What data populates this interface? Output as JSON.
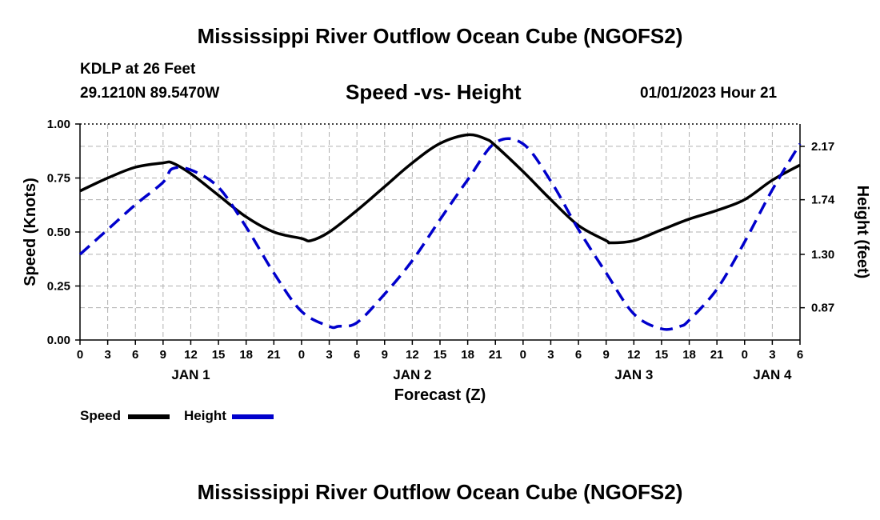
{
  "page": {
    "title": "Mississippi River Outflow Ocean Cube (NGOFS2)",
    "footer_title": "Mississippi River Outflow Ocean Cube (NGOFS2)",
    "station": "KDLP at 26 Feet",
    "coordinates": "29.1210N  89.5470W",
    "subtitle": "Speed -vs- Height",
    "datetime": "01/01/2023 Hour 21"
  },
  "chart_data": {
    "type": "line",
    "title": "Speed -vs- Height",
    "xlabel": "Forecast (Z)",
    "ylabel": "Speed (Knots)",
    "y2label": "Height (feet)",
    "x_unit": "hours from 00Z Jan 1",
    "xlim": [
      0,
      78
    ],
    "ylim": [
      0,
      1.0
    ],
    "y2lim": [
      0.61,
      2.35
    ],
    "x_ticks": [
      0,
      3,
      6,
      9,
      12,
      15,
      18,
      21,
      24,
      27,
      30,
      33,
      36,
      39,
      42,
      45,
      48,
      51,
      54,
      57,
      60,
      63,
      66,
      69,
      72,
      75,
      78
    ],
    "x_tick_labels": [
      "0",
      "3",
      "6",
      "9",
      "12",
      "15",
      "18",
      "21",
      "0",
      "3",
      "6",
      "9",
      "12",
      "15",
      "18",
      "21",
      "0",
      "3",
      "6",
      "9",
      "12",
      "15",
      "18",
      "21",
      "0",
      "3",
      "6"
    ],
    "day_labels": [
      {
        "x": 12,
        "label": "JAN 1"
      },
      {
        "x": 36,
        "label": "JAN 2"
      },
      {
        "x": 60,
        "label": "JAN 3"
      },
      {
        "x": 75,
        "label": "JAN 4"
      }
    ],
    "y_ticks": [
      0,
      0.25,
      0.5,
      0.75,
      1.0
    ],
    "y_tick_labels": [
      "0.00",
      "0.25",
      "0.50",
      "0.75",
      "1.00"
    ],
    "y2_ticks": [
      0.87,
      1.3,
      1.74,
      2.17
    ],
    "y2_tick_labels": [
      "0.87",
      "1.30",
      "1.74",
      "2.17"
    ],
    "grid": true,
    "legend": "bottom-left",
    "series": [
      {
        "name": "Speed",
        "axis": "left",
        "color": "#000000",
        "style": "solid",
        "x": [
          0,
          3,
          6,
          9,
          10,
          12,
          15,
          18,
          21,
          24,
          25,
          27,
          30,
          33,
          36,
          39,
          42,
          44,
          45,
          48,
          51,
          54,
          57,
          57.5,
          60,
          63,
          66,
          69,
          72,
          75,
          78
        ],
        "values": [
          0.69,
          0.75,
          0.8,
          0.82,
          0.82,
          0.77,
          0.67,
          0.57,
          0.5,
          0.47,
          0.46,
          0.5,
          0.6,
          0.71,
          0.82,
          0.91,
          0.95,
          0.93,
          0.9,
          0.78,
          0.65,
          0.53,
          0.46,
          0.45,
          0.46,
          0.51,
          0.56,
          0.6,
          0.65,
          0.74,
          0.81
        ]
      },
      {
        "name": "Height",
        "axis": "right",
        "color": "#0000cc",
        "style": "dashed",
        "x": [
          0,
          3,
          6,
          9,
          10,
          12,
          15,
          18,
          21,
          24,
          27,
          28,
          30,
          33,
          36,
          39,
          42,
          45,
          48,
          51,
          54,
          57,
          60,
          63,
          65,
          66,
          69,
          72,
          75,
          78
        ],
        "values": [
          1.3,
          1.5,
          1.7,
          1.88,
          1.99,
          1.98,
          1.84,
          1.52,
          1.15,
          0.84,
          0.72,
          0.72,
          0.75,
          0.98,
          1.25,
          1.58,
          1.9,
          2.2,
          2.19,
          1.89,
          1.5,
          1.15,
          0.82,
          0.7,
          0.72,
          0.77,
          1.02,
          1.4,
          1.82,
          2.19
        ]
      }
    ]
  }
}
